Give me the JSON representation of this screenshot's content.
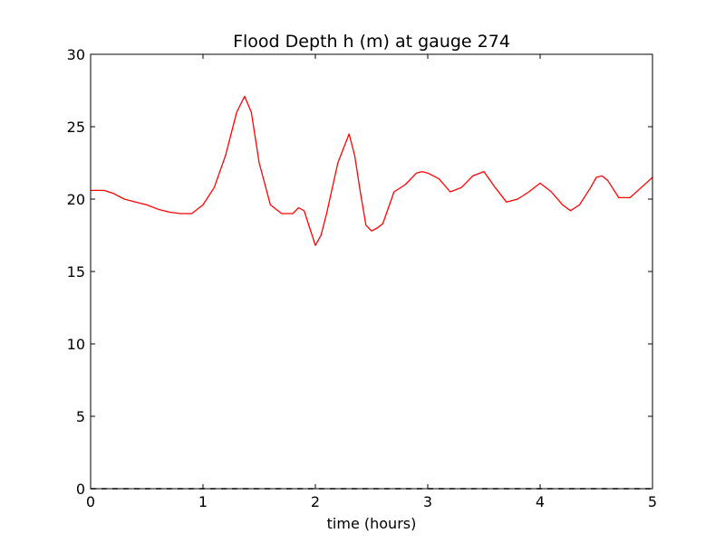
{
  "chart_data": {
    "type": "line",
    "title": "Flood Depth h (m) at gauge 274",
    "xlabel": "time (hours)",
    "ylabel": "",
    "xlim": [
      0,
      5
    ],
    "ylim": [
      0,
      30
    ],
    "xticks": [
      0,
      1,
      2,
      3,
      4,
      5
    ],
    "yticks": [
      0,
      5,
      10,
      15,
      20,
      25,
      30
    ],
    "grid": false,
    "series": [
      {
        "color": "#ff0000",
        "style": "solid",
        "x": [
          0.0,
          0.12,
          0.2,
          0.3,
          0.4,
          0.5,
          0.6,
          0.7,
          0.8,
          0.9,
          1.0,
          1.1,
          1.2,
          1.3,
          1.37,
          1.43,
          1.5,
          1.6,
          1.7,
          1.8,
          1.85,
          1.9,
          1.95,
          2.0,
          2.05,
          2.1,
          2.2,
          2.25,
          2.3,
          2.35,
          2.4,
          2.45,
          2.5,
          2.55,
          2.6,
          2.7,
          2.8,
          2.9,
          2.95,
          3.0,
          3.1,
          3.2,
          3.3,
          3.4,
          3.5,
          3.6,
          3.7,
          3.8,
          3.9,
          4.0,
          4.1,
          4.2,
          4.27,
          4.35,
          4.45,
          4.5,
          4.55,
          4.6,
          4.7,
          4.8,
          4.9,
          5.0
        ],
        "y": [
          20.6,
          20.6,
          20.4,
          20.0,
          19.8,
          19.6,
          19.3,
          19.1,
          19.0,
          19.0,
          19.6,
          20.8,
          23.0,
          26.0,
          27.1,
          26.0,
          22.5,
          19.6,
          19.0,
          19.0,
          19.4,
          19.2,
          18.0,
          16.8,
          17.5,
          19.0,
          22.5,
          23.5,
          24.5,
          23.0,
          20.5,
          18.2,
          17.8,
          18.0,
          18.3,
          20.5,
          21.0,
          21.8,
          21.9,
          21.8,
          21.4,
          20.5,
          20.8,
          21.6,
          21.9,
          20.8,
          19.8,
          20.0,
          20.5,
          21.1,
          20.5,
          19.6,
          19.2,
          19.6,
          20.8,
          21.5,
          21.6,
          21.3,
          20.1,
          20.1,
          20.8,
          21.5
        ]
      },
      {
        "color": "#000000",
        "style": "dashed",
        "x": [
          0,
          5
        ],
        "y": [
          0,
          0
        ]
      }
    ]
  }
}
